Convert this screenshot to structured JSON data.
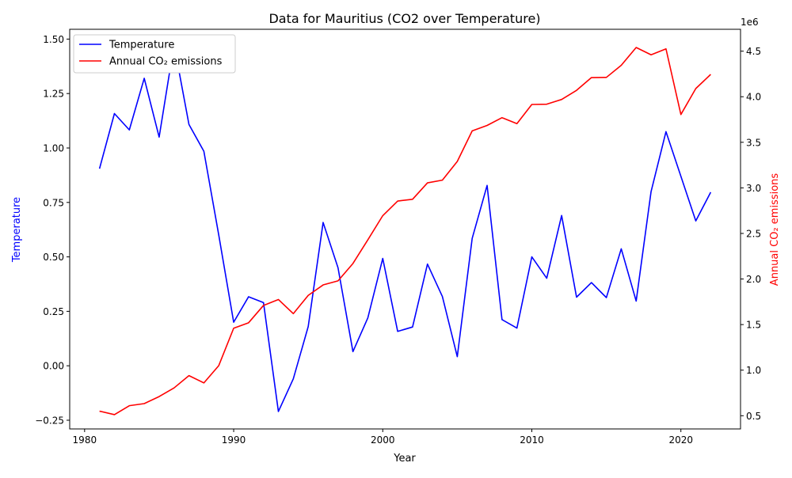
{
  "chart_data": {
    "type": "line",
    "title": "Data for Mauritius (CO2 over Temperature)",
    "xlabel": "Year",
    "ylabel_left": "Temperature",
    "ylabel_right": "Annual CO₂ emissions",
    "right_axis_offset_label": "1e6",
    "xlim": [
      1979,
      2024
    ],
    "ylim_left": [
      -0.29,
      1.545
    ],
    "ylim_right": [
      355000,
      4740000
    ],
    "x_ticks": [
      1980,
      1990,
      2000,
      2010,
      2020
    ],
    "y_left_ticks": [
      -0.25,
      0.0,
      0.25,
      0.5,
      0.75,
      1.0,
      1.25,
      1.5
    ],
    "y_left_tick_labels": [
      "−0.25",
      "0.00",
      "0.25",
      "0.50",
      "0.75",
      "1.00",
      "1.25",
      "1.50"
    ],
    "y_right_ticks": [
      0.5,
      1.0,
      1.5,
      2.0,
      2.5,
      3.0,
      3.5,
      4.0,
      4.5
    ],
    "y_right_tick_labels": [
      "0.5",
      "1.0",
      "1.5",
      "2.0",
      "2.5",
      "3.0",
      "3.5",
      "4.0",
      "4.5"
    ],
    "legend_position": "upper-left",
    "grid": false,
    "colors": {
      "temperature": "#0000ff",
      "co2": "#ff0000",
      "left_label": "#0000ff",
      "right_label": "#ff0000"
    },
    "x": [
      1981,
      1982,
      1983,
      1984,
      1985,
      1986,
      1987,
      1988,
      1989,
      1990,
      1991,
      1992,
      1993,
      1994,
      1995,
      1996,
      1997,
      1998,
      1999,
      2000,
      2001,
      2002,
      2003,
      2004,
      2005,
      2006,
      2007,
      2008,
      2009,
      2010,
      2011,
      2012,
      2013,
      2014,
      2015,
      2016,
      2017,
      2018,
      2019,
      2020,
      2021,
      2022
    ],
    "series": [
      {
        "name": "Temperature",
        "axis": "left",
        "values": [
          0.905,
          1.158,
          1.083,
          1.32,
          1.05,
          1.475,
          1.108,
          0.985,
          0.6,
          0.2,
          0.317,
          0.29,
          -0.21,
          -0.06,
          0.18,
          0.658,
          0.45,
          0.065,
          0.22,
          0.493,
          0.158,
          0.178,
          0.467,
          0.318,
          0.042,
          0.585,
          0.828,
          0.212,
          0.173,
          0.5,
          0.402,
          0.69,
          0.315,
          0.382,
          0.313,
          0.537,
          0.297,
          0.8,
          1.075,
          0.87,
          0.665,
          0.797
        ]
      },
      {
        "name": "Annual CO₂ emissions",
        "axis": "right",
        "values": [
          550000,
          512000,
          610000,
          633000,
          710000,
          805000,
          940000,
          860000,
          1050000,
          1460000,
          1520000,
          1710000,
          1775000,
          1620000,
          1820000,
          1935000,
          1980000,
          2170000,
          2430000,
          2695000,
          2855000,
          2875000,
          3055000,
          3085000,
          3290000,
          3625000,
          3685000,
          3770000,
          3705000,
          3915000,
          3918000,
          3970000,
          4070000,
          4210000,
          4212000,
          4345000,
          4540000,
          4460000,
          4525000,
          3805000,
          4090000,
          4245000
        ]
      }
    ]
  }
}
